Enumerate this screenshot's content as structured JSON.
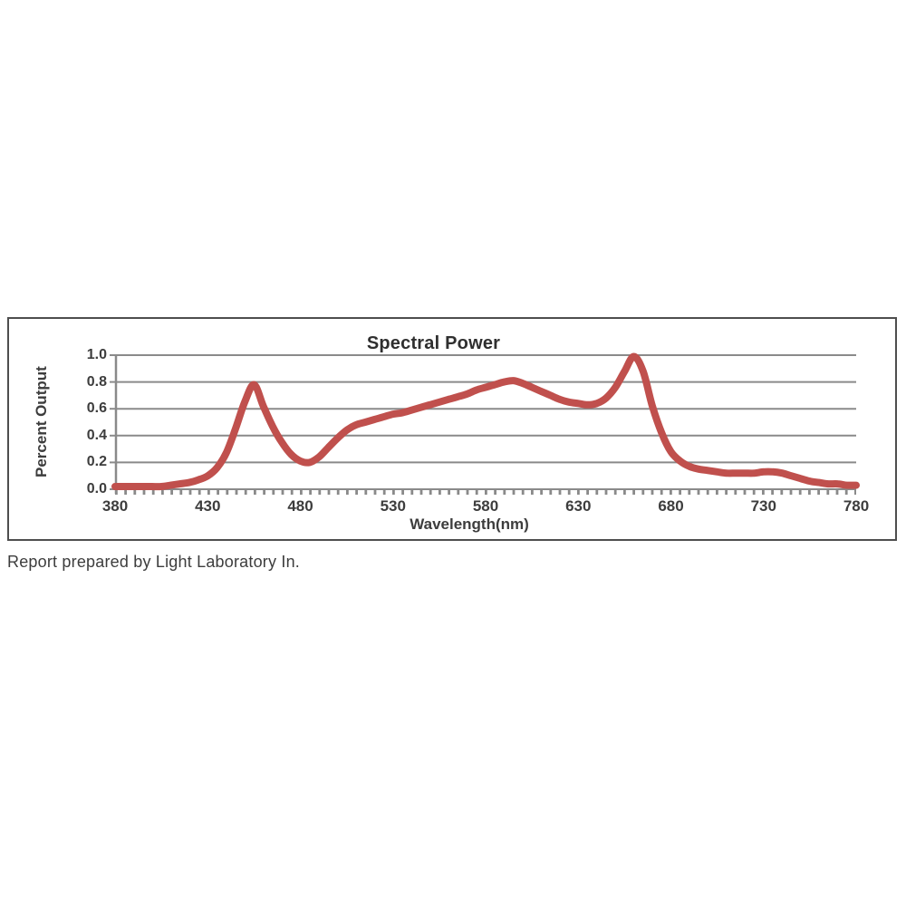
{
  "chart": {
    "title": "Spectral Power",
    "xlabel": "Wavelength(nm)",
    "ylabel": "Percent Output"
  },
  "footer": {
    "report_note": "Report prepared by Light Laboratory In."
  },
  "colors": {
    "curve": "#c0504d",
    "grid": "#8a8a8a",
    "axis": "#8a8a8a",
    "text": "#3d3d3d",
    "frame_border": "#4e4e4e",
    "background": "#ffffff"
  },
  "chart_data": {
    "type": "line",
    "title": "Spectral Power",
    "xlabel": "Wavelength(nm)",
    "ylabel": "Percent Output",
    "xlim": [
      380,
      780
    ],
    "ylim": [
      0,
      1
    ],
    "xticks": [
      380,
      430,
      480,
      530,
      580,
      630,
      680,
      730,
      780
    ],
    "yticks": [
      0,
      0.2,
      0.4,
      0.6,
      0.8,
      1
    ],
    "grid": "horizontal-only",
    "legend": "none",
    "line_color": "#c0504d",
    "grid_color": "#8a8a8a",
    "series": [
      {
        "name": "Spectral Power",
        "x": [
          380,
          385,
          390,
          395,
          400,
          405,
          410,
          415,
          420,
          425,
          430,
          435,
          440,
          445,
          450,
          455,
          460,
          465,
          470,
          475,
          480,
          485,
          490,
          495,
          500,
          505,
          510,
          515,
          520,
          525,
          530,
          535,
          540,
          545,
          550,
          555,
          560,
          565,
          570,
          575,
          580,
          585,
          590,
          595,
          600,
          605,
          610,
          615,
          620,
          625,
          630,
          635,
          640,
          645,
          650,
          655,
          660,
          665,
          670,
          675,
          680,
          685,
          690,
          695,
          700,
          705,
          710,
          715,
          720,
          725,
          730,
          735,
          740,
          745,
          750,
          755,
          760,
          765,
          770,
          775,
          780
        ],
        "y": [
          0.02,
          0.02,
          0.02,
          0.02,
          0.02,
          0.02,
          0.03,
          0.04,
          0.05,
          0.07,
          0.1,
          0.16,
          0.27,
          0.45,
          0.65,
          0.78,
          0.62,
          0.47,
          0.35,
          0.26,
          0.21,
          0.2,
          0.24,
          0.31,
          0.38,
          0.44,
          0.48,
          0.5,
          0.52,
          0.54,
          0.56,
          0.57,
          0.59,
          0.61,
          0.63,
          0.65,
          0.67,
          0.69,
          0.71,
          0.74,
          0.76,
          0.78,
          0.8,
          0.81,
          0.79,
          0.76,
          0.73,
          0.7,
          0.67,
          0.65,
          0.64,
          0.63,
          0.64,
          0.68,
          0.76,
          0.88,
          0.99,
          0.88,
          0.62,
          0.42,
          0.28,
          0.21,
          0.17,
          0.15,
          0.14,
          0.13,
          0.12,
          0.12,
          0.12,
          0.12,
          0.13,
          0.13,
          0.12,
          0.1,
          0.08,
          0.06,
          0.05,
          0.04,
          0.04,
          0.03,
          0.03
        ]
      }
    ]
  }
}
